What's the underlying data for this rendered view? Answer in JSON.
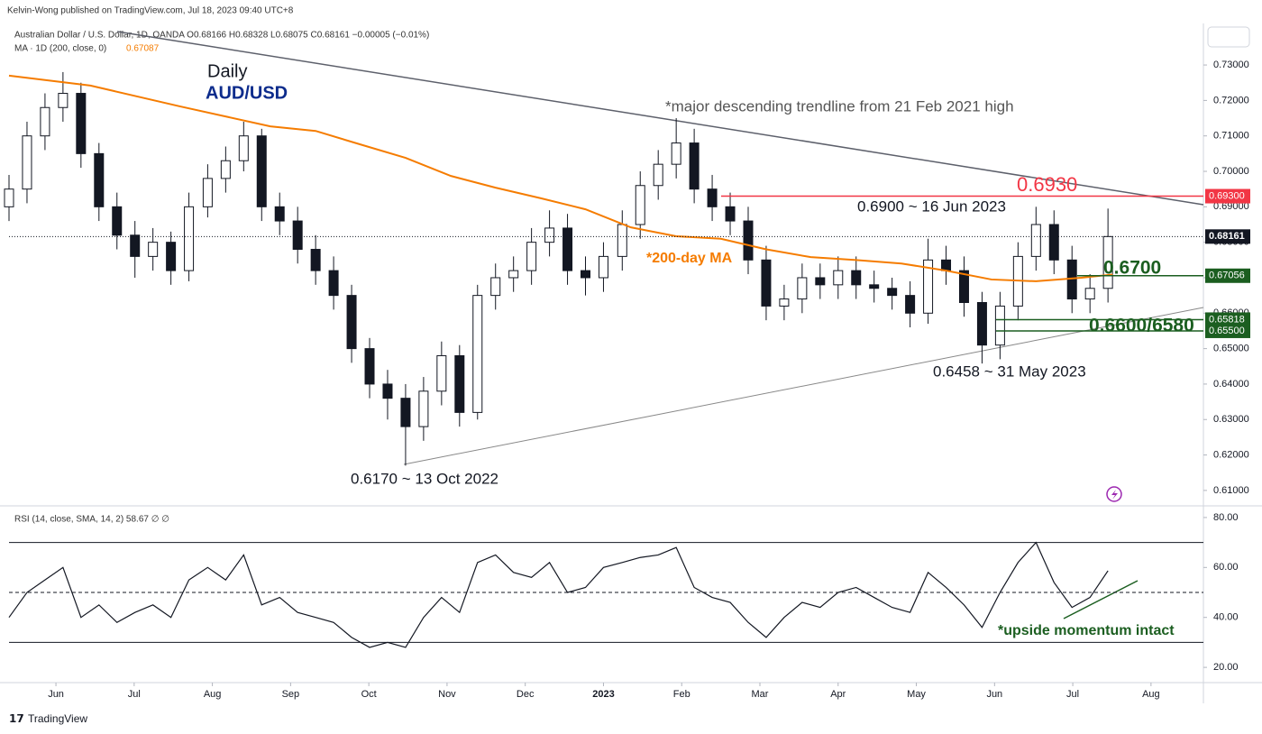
{
  "chart_data": [
    {
      "type": "candlestick",
      "publisher": "Kelvin-Wong published on TradingView.com, Jul 18, 2023 09:40 UTC+8",
      "symbol_line": "Australian Dollar / U.S. Dollar, 1D, OANDA  O0.68166 H0.68328 L0.68075 C0.68161 −0.00005 (−0.01%)",
      "ma_legend": "MA · 1D (200, close, 0)",
      "ma_legend_value": "0.67087",
      "footer": "TradingView",
      "up_color": "#ffffff",
      "down_color": "#131722",
      "ma_color": "#f57c00",
      "x": [
        -0.6,
        -0.37,
        -0.14,
        0.09,
        0.32,
        0.55,
        0.78,
        1.01,
        1.24,
        1.47,
        1.7,
        1.94,
        2.17,
        2.4,
        2.63,
        2.86,
        3.09,
        3.32,
        3.55,
        3.78,
        4.01,
        4.24,
        4.47,
        4.7,
        4.93,
        5.16,
        5.39,
        5.62,
        5.85,
        6.08,
        6.31,
        6.54,
        6.77,
        7.0,
        7.24,
        7.47,
        7.7,
        7.93,
        8.16,
        8.39,
        8.62,
        8.85,
        9.08,
        9.31,
        9.54,
        9.77,
        10.0,
        10.23,
        10.46,
        10.69,
        10.92,
        11.15,
        11.38,
        11.61,
        11.84,
        12.07,
        12.3,
        12.53,
        12.76,
        12.99,
        13.22,
        13.45
      ],
      "ohlc": [
        [
          0.69,
          0.699,
          0.686,
          0.695
        ],
        [
          0.695,
          0.714,
          0.691,
          0.71
        ],
        [
          0.71,
          0.722,
          0.706,
          0.718
        ],
        [
          0.718,
          0.728,
          0.714,
          0.722
        ],
        [
          0.722,
          0.725,
          0.701,
          0.705
        ],
        [
          0.705,
          0.708,
          0.686,
          0.69
        ],
        [
          0.69,
          0.694,
          0.678,
          0.682
        ],
        [
          0.682,
          0.686,
          0.67,
          0.676
        ],
        [
          0.676,
          0.684,
          0.672,
          0.68
        ],
        [
          0.68,
          0.683,
          0.668,
          0.672
        ],
        [
          0.672,
          0.694,
          0.669,
          0.69
        ],
        [
          0.69,
          0.702,
          0.687,
          0.698
        ],
        [
          0.698,
          0.707,
          0.694,
          0.703
        ],
        [
          0.703,
          0.714,
          0.7,
          0.71
        ],
        [
          0.71,
          0.712,
          0.686,
          0.69
        ],
        [
          0.69,
          0.694,
          0.682,
          0.686
        ],
        [
          0.686,
          0.69,
          0.674,
          0.678
        ],
        [
          0.678,
          0.682,
          0.668,
          0.672
        ],
        [
          0.672,
          0.676,
          0.661,
          0.665
        ],
        [
          0.665,
          0.668,
          0.646,
          0.65
        ],
        [
          0.65,
          0.653,
          0.636,
          0.64
        ],
        [
          0.64,
          0.644,
          0.63,
          0.636
        ],
        [
          0.636,
          0.64,
          0.617,
          0.628
        ],
        [
          0.628,
          0.642,
          0.624,
          0.638
        ],
        [
          0.638,
          0.652,
          0.634,
          0.648
        ],
        [
          0.648,
          0.651,
          0.628,
          0.632
        ],
        [
          0.632,
          0.668,
          0.63,
          0.665
        ],
        [
          0.665,
          0.674,
          0.661,
          0.67
        ],
        [
          0.67,
          0.676,
          0.666,
          0.672
        ],
        [
          0.672,
          0.684,
          0.668,
          0.68
        ],
        [
          0.68,
          0.689,
          0.676,
          0.684
        ],
        [
          0.684,
          0.688,
          0.668,
          0.672
        ],
        [
          0.672,
          0.676,
          0.665,
          0.67
        ],
        [
          0.67,
          0.68,
          0.666,
          0.676
        ],
        [
          0.676,
          0.689,
          0.672,
          0.685
        ],
        [
          0.685,
          0.7,
          0.681,
          0.696
        ],
        [
          0.696,
          0.706,
          0.692,
          0.702
        ],
        [
          0.702,
          0.715,
          0.698,
          0.708
        ],
        [
          0.708,
          0.712,
          0.691,
          0.695
        ],
        [
          0.695,
          0.699,
          0.686,
          0.69
        ],
        [
          0.69,
          0.694,
          0.682,
          0.686
        ],
        [
          0.686,
          0.69,
          0.671,
          0.675
        ],
        [
          0.675,
          0.679,
          0.658,
          0.662
        ],
        [
          0.662,
          0.668,
          0.658,
          0.664
        ],
        [
          0.664,
          0.674,
          0.66,
          0.67
        ],
        [
          0.67,
          0.674,
          0.664,
          0.668
        ],
        [
          0.668,
          0.676,
          0.664,
          0.672
        ],
        [
          0.672,
          0.676,
          0.664,
          0.668
        ],
        [
          0.668,
          0.672,
          0.663,
          0.667
        ],
        [
          0.667,
          0.67,
          0.661,
          0.665
        ],
        [
          0.665,
          0.669,
          0.656,
          0.66
        ],
        [
          0.66,
          0.681,
          0.657,
          0.675
        ],
        [
          0.675,
          0.679,
          0.668,
          0.672
        ],
        [
          0.672,
          0.676,
          0.659,
          0.663
        ],
        [
          0.663,
          0.666,
          0.6458,
          0.651
        ],
        [
          0.651,
          0.666,
          0.647,
          0.662
        ],
        [
          0.662,
          0.68,
          0.658,
          0.676
        ],
        [
          0.676,
          0.69,
          0.672,
          0.685
        ],
        [
          0.685,
          0.689,
          0.671,
          0.675
        ],
        [
          0.675,
          0.679,
          0.66,
          0.664
        ],
        [
          0.664,
          0.671,
          0.66,
          0.667
        ],
        [
          0.667,
          0.6895,
          0.663,
          0.68161
        ]
      ],
      "ma_x": [
        -0.6,
        0.44,
        1.59,
        2.74,
        3.32,
        3.89,
        4.47,
        5.05,
        5.62,
        6.2,
        6.77,
        7.35,
        7.93,
        8.5,
        9.08,
        9.65,
        10.23,
        10.81,
        11.38,
        11.96,
        12.53,
        13.11,
        13.51
      ],
      "ma_values": [
        0.727,
        0.7242,
        0.7183,
        0.7127,
        0.7114,
        0.7076,
        0.7038,
        0.6987,
        0.6954,
        0.6924,
        0.6893,
        0.6842,
        0.6817,
        0.681,
        0.678,
        0.6758,
        0.675,
        0.674,
        0.672,
        0.6695,
        0.669,
        0.67,
        0.6709
      ],
      "xlim": [
        -0.6,
        14.67
      ],
      "ylim": [
        0.6059,
        0.7407
      ],
      "xticks": [
        {
          "value": 0,
          "label": "Jun"
        },
        {
          "value": 1,
          "label": "Jul"
        },
        {
          "value": 2,
          "label": "Aug"
        },
        {
          "value": 3,
          "label": "Sep"
        },
        {
          "value": 4,
          "label": "Oct"
        },
        {
          "value": 5,
          "label": "Nov"
        },
        {
          "value": 6,
          "label": "Dec"
        },
        {
          "value": 7,
          "label": "2023"
        },
        {
          "value": 8,
          "label": "Feb"
        },
        {
          "value": 9,
          "label": "Mar"
        },
        {
          "value": 10,
          "label": "Apr"
        },
        {
          "value": 11,
          "label": "May"
        },
        {
          "value": 12,
          "label": "Jun"
        },
        {
          "value": 13,
          "label": "Jul"
        },
        {
          "value": 14,
          "label": "Aug"
        }
      ],
      "yticks": [
        {
          "value": 0.61,
          "label": "0.61000"
        },
        {
          "value": 0.62,
          "label": "0.62000"
        },
        {
          "value": 0.63,
          "label": "0.63000"
        },
        {
          "value": 0.64,
          "label": "0.64000"
        },
        {
          "value": 0.65,
          "label": "0.65000"
        },
        {
          "value": 0.66,
          "label": "0.66000"
        },
        {
          "value": 0.67,
          "label": "0.67000"
        },
        {
          "value": 0.68,
          "label": "0.68000"
        },
        {
          "value": 0.69,
          "label": "0.69000"
        },
        {
          "value": 0.7,
          "label": "0.70000"
        },
        {
          "value": 0.71,
          "label": "0.71000"
        },
        {
          "value": 0.72,
          "label": "0.72000"
        },
        {
          "value": 0.73,
          "label": "0.73000"
        }
      ],
      "last_price": {
        "value": 0.68161,
        "label": "0.68161"
      },
      "levels": [
        {
          "value": 0.693,
          "label": "0.69300",
          "color": "#f23645"
        },
        {
          "value": 0.67056,
          "label": "0.67056",
          "color": "#1b5e20"
        },
        {
          "value": 0.65818,
          "label": "0.65818",
          "color": "#1b5e20"
        },
        {
          "value": 0.655,
          "label": "0.65500",
          "color": "#1b5e20"
        }
      ],
      "annotations": [
        {
          "text": "Daily",
          "color": "#131722"
        },
        {
          "text": "AUD/USD",
          "color": "#0d2c8c"
        },
        {
          "text": "*major descending trendline from 21 Feb 2021 high",
          "color": "#555555"
        },
        {
          "text": "0.6930",
          "color": "#f23645"
        },
        {
          "text": "0.6900 ~ 16 Jun 2023",
          "color": "#131722"
        },
        {
          "text": "*200-day MA",
          "color": "#f57c00"
        },
        {
          "text": "0.6700",
          "color": "#1b5e20"
        },
        {
          "text": "0.6600/6580",
          "color": "#1b5e20"
        },
        {
          "text": "0.6458 ~ 31 May 2023",
          "color": "#131722"
        },
        {
          "text": "0.6170 ~ 13 Oct 2022",
          "color": "#131722"
        }
      ]
    },
    {
      "type": "line",
      "legend": "RSI (14, close, SMA, 14, 2)  58.67  ∅  ∅",
      "color": "#131722",
      "x": [
        -0.6,
        -0.37,
        -0.14,
        0.09,
        0.32,
        0.55,
        0.78,
        1.01,
        1.24,
        1.47,
        1.7,
        1.94,
        2.17,
        2.4,
        2.63,
        2.86,
        3.09,
        3.32,
        3.55,
        3.78,
        4.01,
        4.24,
        4.47,
        4.7,
        4.93,
        5.16,
        5.39,
        5.62,
        5.85,
        6.08,
        6.31,
        6.54,
        6.77,
        7.0,
        7.24,
        7.47,
        7.7,
        7.93,
        8.16,
        8.39,
        8.62,
        8.85,
        9.08,
        9.31,
        9.54,
        9.77,
        10.0,
        10.23,
        10.46,
        10.69,
        10.92,
        11.15,
        11.38,
        11.61,
        11.84,
        12.07,
        12.3,
        12.53,
        12.76,
        12.99,
        13.22,
        13.45
      ],
      "values": [
        40,
        50,
        55,
        60,
        40,
        45,
        38,
        42,
        45,
        40,
        55,
        60,
        55,
        65,
        45,
        48,
        42,
        40,
        38,
        32,
        28,
        30,
        28,
        40,
        48,
        42,
        62,
        65,
        58,
        56,
        62,
        50,
        52,
        60,
        62,
        64,
        65,
        68,
        52,
        48,
        46,
        38,
        32,
        40,
        46,
        44,
        50,
        52,
        48,
        44,
        42,
        58,
        52,
        45,
        36,
        50,
        62,
        70,
        54,
        44,
        48,
        58.67
      ],
      "xlim": [
        -0.6,
        14.67
      ],
      "ylim": [
        13.9,
        84.3
      ],
      "yticks": [
        {
          "value": 20,
          "label": "20.00"
        },
        {
          "value": 40,
          "label": "40.00"
        },
        {
          "value": 60,
          "label": "60.00"
        },
        {
          "value": 80,
          "label": "80.00"
        }
      ],
      "bands": [
        70,
        50,
        30
      ],
      "annotation": {
        "text": "*upside momentum intact",
        "color": "#1b5e20"
      }
    }
  ]
}
